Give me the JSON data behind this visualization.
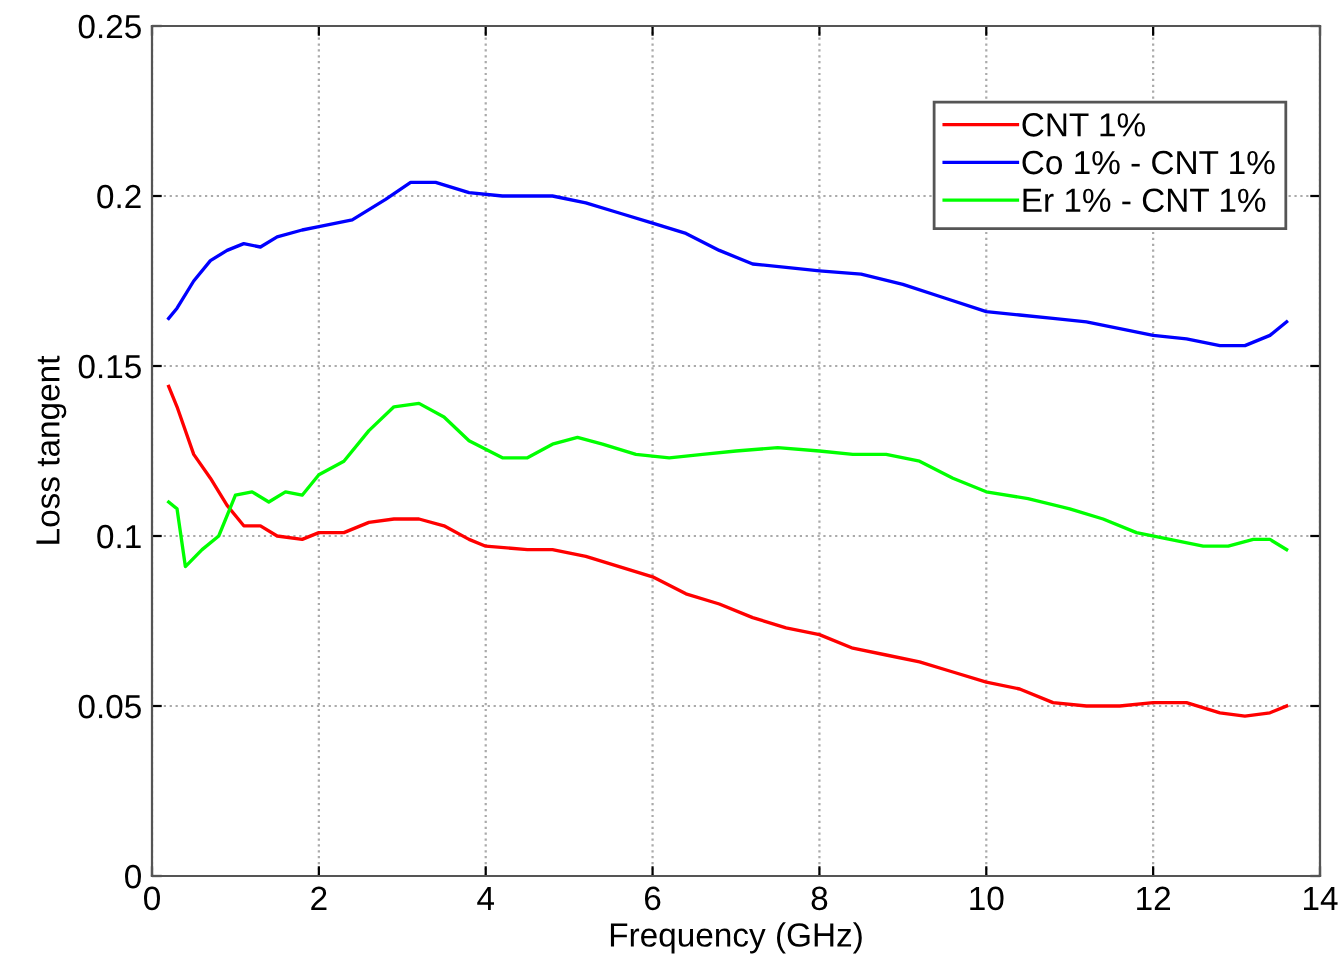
{
  "chart_data": {
    "type": "line",
    "xlabel": "Frequency (GHz)",
    "ylabel": "Loss tangent",
    "xlim": [
      0,
      14
    ],
    "xticks": [
      0,
      2,
      4,
      6,
      8,
      10,
      12,
      14
    ],
    "ylim": [
      0,
      0.25
    ],
    "yticks": [
      0,
      0.05,
      0.1,
      0.15,
      0.2,
      0.25
    ],
    "grid": true,
    "legend": "top right",
    "marker": "none",
    "line_style": "solid",
    "series": [
      {
        "name": "CNT 1%",
        "color": "#ff0000",
        "x": [
          0.2,
          0.3,
          0.5,
          0.7,
          0.9,
          1.1,
          1.3,
          1.5,
          1.8,
          2.0,
          2.3,
          2.6,
          2.9,
          3.2,
          3.5,
          3.8,
          4.0,
          4.5,
          4.8,
          5.2,
          5.6,
          6.0,
          6.4,
          6.8,
          7.2,
          7.6,
          8.0,
          8.4,
          8.8,
          9.2,
          9.6,
          10.0,
          10.4,
          10.8,
          11.2,
          11.6,
          12.0,
          12.4,
          12.8,
          13.1,
          13.4,
          13.6
        ],
        "values": [
          0.144,
          0.138,
          0.124,
          0.117,
          0.109,
          0.103,
          0.103,
          0.1,
          0.099,
          0.101,
          0.101,
          0.104,
          0.105,
          0.105,
          0.103,
          0.099,
          0.097,
          0.096,
          0.096,
          0.094,
          0.091,
          0.088,
          0.083,
          0.08,
          0.076,
          0.073,
          0.071,
          0.067,
          0.065,
          0.063,
          0.06,
          0.057,
          0.055,
          0.051,
          0.05,
          0.05,
          0.051,
          0.051,
          0.048,
          0.047,
          0.048,
          0.05
        ]
      },
      {
        "name": "Co 1% - CNT 1%",
        "color": "#0000ff",
        "x": [
          0.2,
          0.3,
          0.5,
          0.7,
          0.9,
          1.1,
          1.3,
          1.5,
          1.8,
          2.0,
          2.4,
          2.8,
          3.1,
          3.4,
          3.8,
          4.2,
          4.8,
          5.2,
          5.6,
          6.0,
          6.4,
          6.8,
          7.2,
          7.6,
          8.0,
          8.5,
          9.0,
          9.5,
          10.0,
          10.4,
          10.8,
          11.2,
          11.6,
          12.0,
          12.4,
          12.8,
          13.1,
          13.4,
          13.6
        ],
        "values": [
          0.164,
          0.167,
          0.175,
          0.181,
          0.184,
          0.186,
          0.185,
          0.188,
          0.19,
          0.191,
          0.193,
          0.199,
          0.204,
          0.204,
          0.201,
          0.2,
          0.2,
          0.198,
          0.195,
          0.192,
          0.189,
          0.184,
          0.18,
          0.179,
          0.178,
          0.177,
          0.174,
          0.17,
          0.166,
          0.165,
          0.164,
          0.163,
          0.161,
          0.159,
          0.158,
          0.156,
          0.156,
          0.159,
          0.163
        ]
      },
      {
        "name": "Er 1% - CNT 1%",
        "color": "#00ff00",
        "x": [
          0.2,
          0.3,
          0.4,
          0.6,
          0.8,
          1.0,
          1.2,
          1.4,
          1.6,
          1.8,
          2.0,
          2.3,
          2.6,
          2.9,
          3.2,
          3.5,
          3.8,
          4.2,
          4.5,
          4.8,
          5.1,
          5.4,
          5.8,
          6.2,
          6.6,
          7.0,
          7.5,
          8.0,
          8.4,
          8.8,
          9.2,
          9.6,
          10.0,
          10.5,
          11.0,
          11.4,
          11.8,
          12.2,
          12.6,
          12.9,
          13.2,
          13.4,
          13.6
        ],
        "values": [
          0.11,
          0.108,
          0.091,
          0.096,
          0.1,
          0.112,
          0.113,
          0.11,
          0.113,
          0.112,
          0.118,
          0.122,
          0.131,
          0.138,
          0.139,
          0.135,
          0.128,
          0.123,
          0.123,
          0.127,
          0.129,
          0.127,
          0.124,
          0.123,
          0.124,
          0.125,
          0.126,
          0.125,
          0.124,
          0.124,
          0.122,
          0.117,
          0.113,
          0.111,
          0.108,
          0.105,
          0.101,
          0.099,
          0.097,
          0.097,
          0.099,
          0.099,
          0.096
        ]
      }
    ]
  }
}
